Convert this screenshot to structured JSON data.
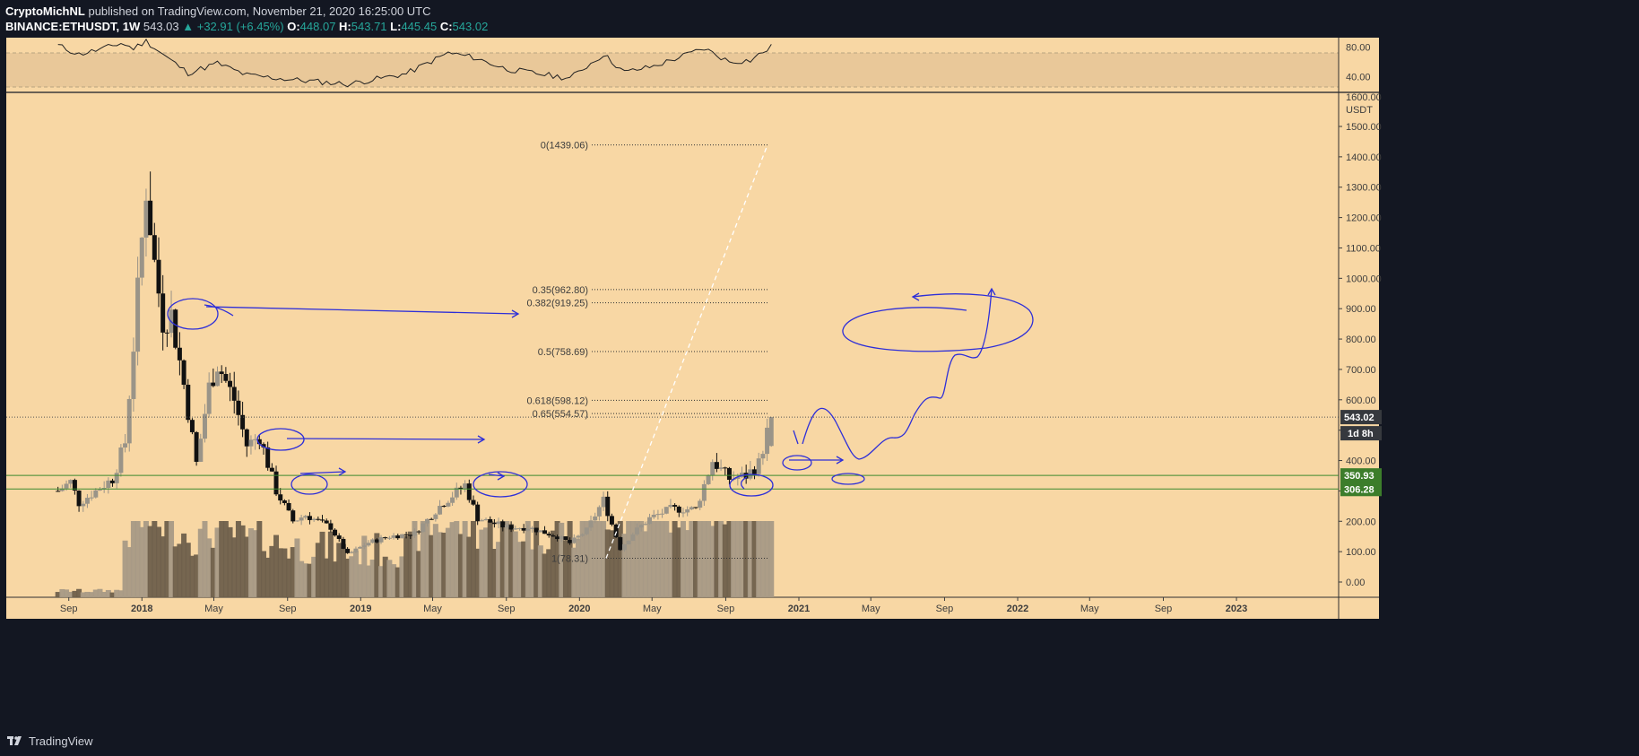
{
  "header": {
    "author": "CryptoMichNL",
    "published": "published on TradingView.com, November 21, 2020 16:25:00 UTC",
    "symbol": "BINANCE:ETHUSDT, 1W",
    "last": "543.03",
    "change": "▲ +32.91 (+6.45%)",
    "o_label": "O:",
    "o": "448.07",
    "h_label": "H:",
    "h": "543.71",
    "l_label": "L:",
    "l": "445.45",
    "c_label": "C:",
    "c": "543.02"
  },
  "footer": {
    "brand": "TradingView",
    "logo_icon": "tradingview-logo-icon"
  },
  "colors": {
    "background": "#f8d7a4",
    "frame": "#131722",
    "rsi_band": "#e9c899",
    "drawing": "#2e2fd8",
    "level_line": "#3c8a2e",
    "price_badge": "#36393e",
    "level_badge": "#3c7d2b"
  },
  "price_axis": {
    "unit": "USDT",
    "ticks": [
      "1500.00",
      "1400.00",
      "1300.00",
      "1200.00",
      "1100.00",
      "1000.00",
      "900.00",
      "800.00",
      "700.00",
      "600.00",
      "500.00",
      "400.00",
      "300.00",
      "200.00",
      "100.00",
      "0.00"
    ],
    "current_price": "543.02",
    "countdown": "1d 8h",
    "levels": [
      "350.93",
      "306.28"
    ]
  },
  "rsi_axis": {
    "ticks": [
      "80.00",
      "40.00"
    ],
    "cut_label": "1600.00"
  },
  "time_axis": {
    "ticks": [
      "Sep",
      "2018",
      "May",
      "Sep",
      "2019",
      "May",
      "Sep",
      "2020",
      "May",
      "Sep",
      "2021",
      "May",
      "Sep",
      "2022",
      "May",
      "Sep",
      "2023"
    ]
  },
  "fib_levels": [
    {
      "ratio": "0",
      "price": 1439.06,
      "label": "0(1439.06)"
    },
    {
      "ratio": "0.35",
      "price": 962.8,
      "label": "0.35(962.80)"
    },
    {
      "ratio": "0.382",
      "price": 919.25,
      "label": "0.382(919.25)"
    },
    {
      "ratio": "0.5",
      "price": 758.69,
      "label": "0.5(758.69)"
    },
    {
      "ratio": "0.618",
      "price": 598.12,
      "label": "0.618(598.12)"
    },
    {
      "ratio": "0.65",
      "price": 554.57,
      "label": "0.65(554.57)"
    },
    {
      "ratio": "1",
      "price": 78.31,
      "label": "1(78.31)"
    }
  ],
  "chart_data": {
    "type": "candlestick",
    "symbol": "BINANCE:ETHUSDT",
    "interval": "1W",
    "y_range": [
      -50,
      1600
    ],
    "x_range": [
      "2017-08-07",
      "2023-06-01"
    ],
    "rsi_range": [
      25,
      90
    ],
    "anchors": [
      [
        "2017-08-14",
        300
      ],
      [
        "2017-09-04",
        330
      ],
      [
        "2017-09-18",
        260
      ],
      [
        "2017-10-16",
        300
      ],
      [
        "2017-11-13",
        340
      ],
      [
        "2017-12-04",
        460
      ],
      [
        "2017-12-18",
        780
      ],
      [
        "2018-01-08",
        1300
      ],
      [
        "2018-01-22",
        1050
      ],
      [
        "2018-02-05",
        860
      ],
      [
        "2018-02-19",
        880
      ],
      [
        "2018-03-12",
        650
      ],
      [
        "2018-04-02",
        390
      ],
      [
        "2018-04-23",
        640
      ],
      [
        "2018-05-07",
        720
      ],
      [
        "2018-06-04",
        600
      ],
      [
        "2018-06-25",
        450
      ],
      [
        "2018-07-16",
        480
      ],
      [
        "2018-08-13",
        300
      ],
      [
        "2018-09-10",
        200
      ],
      [
        "2018-10-01",
        220
      ],
      [
        "2018-11-12",
        180
      ],
      [
        "2018-12-10",
        90
      ],
      [
        "2019-01-14",
        130
      ],
      [
        "2019-02-18",
        150
      ],
      [
        "2019-04-01",
        160
      ],
      [
        "2019-05-13",
        250
      ],
      [
        "2019-06-24",
        320
      ],
      [
        "2019-07-15",
        210
      ],
      [
        "2019-09-02",
        180
      ],
      [
        "2019-10-07",
        180
      ],
      [
        "2019-11-25",
        150
      ],
      [
        "2019-12-16",
        128
      ],
      [
        "2020-01-13",
        170
      ],
      [
        "2020-02-10",
        270
      ],
      [
        "2020-03-09",
        110
      ],
      [
        "2020-03-30",
        160
      ],
      [
        "2020-04-27",
        210
      ],
      [
        "2020-06-01",
        240
      ],
      [
        "2020-07-13",
        240
      ],
      [
        "2020-08-10",
        400
      ],
      [
        "2020-09-07",
        340
      ],
      [
        "2020-10-05",
        350
      ],
      [
        "2020-10-26",
        390
      ],
      [
        "2020-11-16",
        543
      ]
    ],
    "rsi_anchors": [
      [
        "2017-08-14",
        82
      ],
      [
        "2017-09-18",
        70
      ],
      [
        "2017-10-30",
        78
      ],
      [
        "2017-11-27",
        85
      ],
      [
        "2017-12-18",
        78
      ],
      [
        "2018-01-08",
        88
      ],
      [
        "2018-02-05",
        70
      ],
      [
        "2018-03-19",
        45
      ],
      [
        "2018-05-07",
        58
      ],
      [
        "2018-06-25",
        42
      ],
      [
        "2018-09-10",
        36
      ],
      [
        "2018-12-10",
        30
      ],
      [
        "2019-03-18",
        44
      ],
      [
        "2019-05-27",
        72
      ],
      [
        "2019-07-08",
        66
      ],
      [
        "2019-09-02",
        50
      ],
      [
        "2019-12-16",
        38
      ],
      [
        "2020-02-10",
        70
      ],
      [
        "2020-03-16",
        46
      ],
      [
        "2020-05-04",
        54
      ],
      [
        "2020-07-27",
        78
      ],
      [
        "2020-09-07",
        60
      ],
      [
        "2020-10-12",
        62
      ],
      [
        "2020-11-16",
        80
      ]
    ]
  }
}
